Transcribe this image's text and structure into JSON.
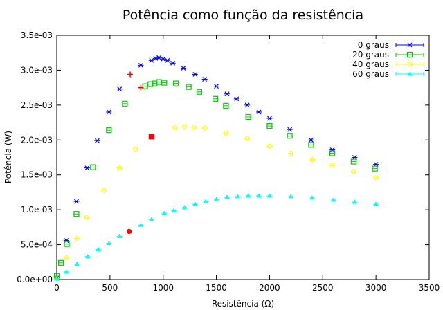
{
  "chart_data": {
    "type": "scatter",
    "title": "Potência como função da resistência",
    "xlabel": "Resistência (Ω)",
    "ylabel": "Potência (W)",
    "xlim": [
      0,
      3500
    ],
    "ylim": [
      0,
      0.0035
    ],
    "x_ticks": [
      "0",
      "500",
      "1000",
      "1500",
      "2000",
      "2500",
      "3000",
      "3500"
    ],
    "y_ticks": [
      "0.0e+00",
      "5.0e-04",
      "1.0e-03",
      "1.5e-03",
      "2.0e-03",
      "2.5e-03",
      "3.0e-03",
      "3.5e-03"
    ],
    "grid": false,
    "legend_position": "top-right",
    "series": [
      {
        "name": "0 graus",
        "color": "#0000ff",
        "marker": "x-errorbar",
        "points": [
          [
            0,
            2e-05
          ],
          [
            90,
            0.00056
          ],
          [
            185,
            0.00112
          ],
          [
            285,
            0.0016
          ],
          [
            380,
            0.00199
          ],
          [
            490,
            0.0024
          ],
          [
            590,
            0.00273
          ],
          [
            790,
            0.00307
          ],
          [
            890,
            0.00314
          ],
          [
            930,
            0.00317
          ],
          [
            960,
            0.00318
          ],
          [
            1000,
            0.00316
          ],
          [
            1040,
            0.00314
          ],
          [
            1090,
            0.0031
          ],
          [
            1190,
            0.00303
          ],
          [
            1300,
            0.00294
          ],
          [
            1390,
            0.00287
          ],
          [
            1500,
            0.00277
          ],
          [
            1600,
            0.00266
          ],
          [
            1690,
            0.00259
          ],
          [
            1790,
            0.0025
          ],
          [
            1900,
            0.0024
          ],
          [
            2000,
            0.00231
          ],
          [
            2190,
            0.00215
          ],
          [
            2390,
            0.002
          ],
          [
            2590,
            0.00186
          ],
          [
            2800,
            0.00175
          ],
          [
            3000,
            0.00165
          ]
        ]
      },
      {
        "name": "20 graus",
        "color": "#00cc00",
        "marker": "square",
        "points": [
          [
            0,
            5e-05
          ],
          [
            40,
            0.00024
          ],
          [
            95,
            0.00051
          ],
          [
            185,
            0.00094
          ],
          [
            340,
            0.00161
          ],
          [
            490,
            0.00214
          ],
          [
            640,
            0.00252
          ],
          [
            830,
            0.00277
          ],
          [
            880,
            0.0028
          ],
          [
            920,
            0.00281
          ],
          [
            960,
            0.00283
          ],
          [
            1010,
            0.00282
          ],
          [
            1120,
            0.00281
          ],
          [
            1240,
            0.00276
          ],
          [
            1340,
            0.00269
          ],
          [
            1490,
            0.00259
          ],
          [
            1590,
            0.00249
          ],
          [
            1800,
            0.00233
          ],
          [
            2000,
            0.0022
          ],
          [
            2190,
            0.00206
          ],
          [
            2390,
            0.00193
          ],
          [
            2590,
            0.00181
          ],
          [
            2790,
            0.00169
          ],
          [
            2990,
            0.00159
          ]
        ]
      },
      {
        "name": "40 graus",
        "color": "#ffff00",
        "marker": "circle",
        "points": [
          [
            0,
            1e-05
          ],
          [
            90,
            0.00031
          ],
          [
            190,
            0.00059
          ],
          [
            280,
            0.00089
          ],
          [
            440,
            0.00128
          ],
          [
            590,
            0.0016
          ],
          [
            740,
            0.00187
          ],
          [
            1110,
            0.00218
          ],
          [
            1200,
            0.00219
          ],
          [
            1290,
            0.00218
          ],
          [
            1390,
            0.00217
          ],
          [
            1590,
            0.0021
          ],
          [
            1790,
            0.00202
          ],
          [
            2000,
            0.00191
          ],
          [
            2200,
            0.00181
          ],
          [
            2400,
            0.00172
          ],
          [
            2590,
            0.00164
          ],
          [
            2790,
            0.00155
          ],
          [
            3000,
            0.00146
          ]
        ]
      },
      {
        "name": "60 graus",
        "color": "#00ffff",
        "marker": "triangle",
        "points": [
          [
            0,
            1e-05
          ],
          [
            90,
            0.00011
          ],
          [
            190,
            0.00022
          ],
          [
            290,
            0.00033
          ],
          [
            390,
            0.00043
          ],
          [
            490,
            0.00052
          ],
          [
            590,
            0.00062
          ],
          [
            790,
            0.00078
          ],
          [
            890,
            0.00086
          ],
          [
            1010,
            0.00095
          ],
          [
            1100,
            0.00099
          ],
          [
            1200,
            0.00103
          ],
          [
            1300,
            0.00108
          ],
          [
            1400,
            0.00112
          ],
          [
            1500,
            0.00115
          ],
          [
            1600,
            0.00118
          ],
          [
            1700,
            0.00119
          ],
          [
            1800,
            0.0012
          ],
          [
            1900,
            0.0012
          ],
          [
            2000,
            0.0012
          ],
          [
            2200,
            0.00119
          ],
          [
            2400,
            0.00117
          ],
          [
            2600,
            0.00114
          ],
          [
            2800,
            0.00111
          ],
          [
            3000,
            0.00108
          ]
        ]
      },
      {
        "color": "#ff0000",
        "marker": "plus",
        "points": [
          [
            690,
            0.00294
          ],
          [
            790,
            0.00275
          ]
        ]
      },
      {
        "color": "#ff0000",
        "marker": "square",
        "points": [
          [
            890,
            0.00205
          ]
        ]
      },
      {
        "color": "#ff0000",
        "marker": "circle",
        "points": [
          [
            680,
            0.00069
          ]
        ]
      }
    ]
  }
}
